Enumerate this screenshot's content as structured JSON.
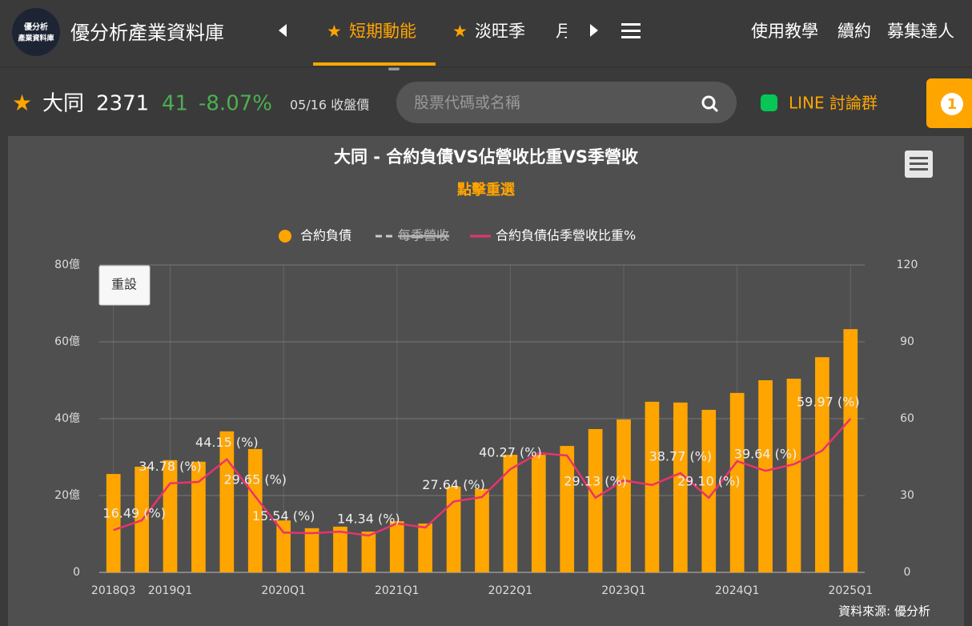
{
  "header": {
    "logo_text": [
      "優分析",
      "產業資料庫"
    ],
    "site_title": "優分析產業資料庫",
    "nav": [
      "短期動能",
      "淡旺季",
      "月"
    ],
    "links": [
      "使用教學",
      "續約",
      "募集達人"
    ]
  },
  "stock": {
    "name": "大同",
    "code": "2371",
    "price": "41",
    "change": "-8.07%",
    "note": "05/16 收盤價",
    "search_placeholder": "股票代碼或名稱",
    "line_group": "LINE 討論群",
    "badge": "1"
  },
  "chart_data": {
    "type": "bar-line",
    "title": "大同 - 合約負債VS佔營收比重VS季營收",
    "subtitle": "點擊重選",
    "reset": "重設",
    "credit": "資料來源: 優分析",
    "categories": [
      "2018Q3",
      null,
      "2019Q1",
      null,
      null,
      null,
      "2020Q1",
      null,
      null,
      null,
      "2021Q1",
      null,
      null,
      null,
      "2022Q1",
      null,
      null,
      null,
      "2023Q1",
      null,
      null,
      null,
      "2024Q1",
      null,
      null,
      null,
      "2025Q1"
    ],
    "series": [
      {
        "name": "合約負債",
        "type": "bar",
        "color": "#ffa500",
        "values": [
          25.6,
          27.5,
          29.2,
          28.8,
          36.7,
          32.1,
          13.5,
          11.5,
          11.9,
          10.6,
          13.3,
          12.7,
          22.3,
          21.7,
          30.6,
          30.6,
          32.9,
          37.3,
          39.8,
          44.4,
          44.2,
          42.3,
          46.7,
          50.0,
          50.4,
          56.0,
          63.3
        ]
      },
      {
        "name": "每季營收",
        "type": "line",
        "color": "#cccccc",
        "visible": false
      },
      {
        "name": "合約負債佔季營收比重%",
        "type": "line",
        "axis": "y2",
        "color": "#e8336d",
        "values": [
          16.49,
          20.3,
          34.78,
          35.3,
          44.15,
          29.65,
          15.54,
          15.3,
          15.9,
          14.34,
          19.1,
          17.5,
          27.64,
          29.4,
          40.27,
          46.6,
          45.6,
          29.13,
          35.9,
          34.1,
          38.77,
          29.1,
          43.4,
          39.64,
          42.2,
          47.5,
          59.97
        ],
        "value_labels": [
          "16.49 (%)",
          null,
          "34.78 (%)",
          null,
          "44.15 (%)",
          "29.65 (%)",
          "15.54 (%)",
          null,
          null,
          "14.34 (%)",
          null,
          null,
          "27.64 (%)",
          null,
          "40.27 (%)",
          null,
          null,
          "29.13 (%)",
          null,
          null,
          "38.77 (%)",
          "29.10 (%)",
          null,
          "39.64 (%)",
          null,
          null,
          "59.97 (%)"
        ]
      }
    ],
    "ylim": [
      0,
      80
    ],
    "yticks": [
      0,
      {
        "value": 20,
        "label": "20億"
      },
      {
        "value": 40,
        "label": "40億"
      },
      {
        "value": 60,
        "label": "60億"
      },
      {
        "value": 80,
        "label": "80億"
      }
    ],
    "y2lim": [
      0,
      120
    ],
    "y2ticks": [
      0,
      30,
      60,
      90,
      120
    ],
    "grid": true
  }
}
